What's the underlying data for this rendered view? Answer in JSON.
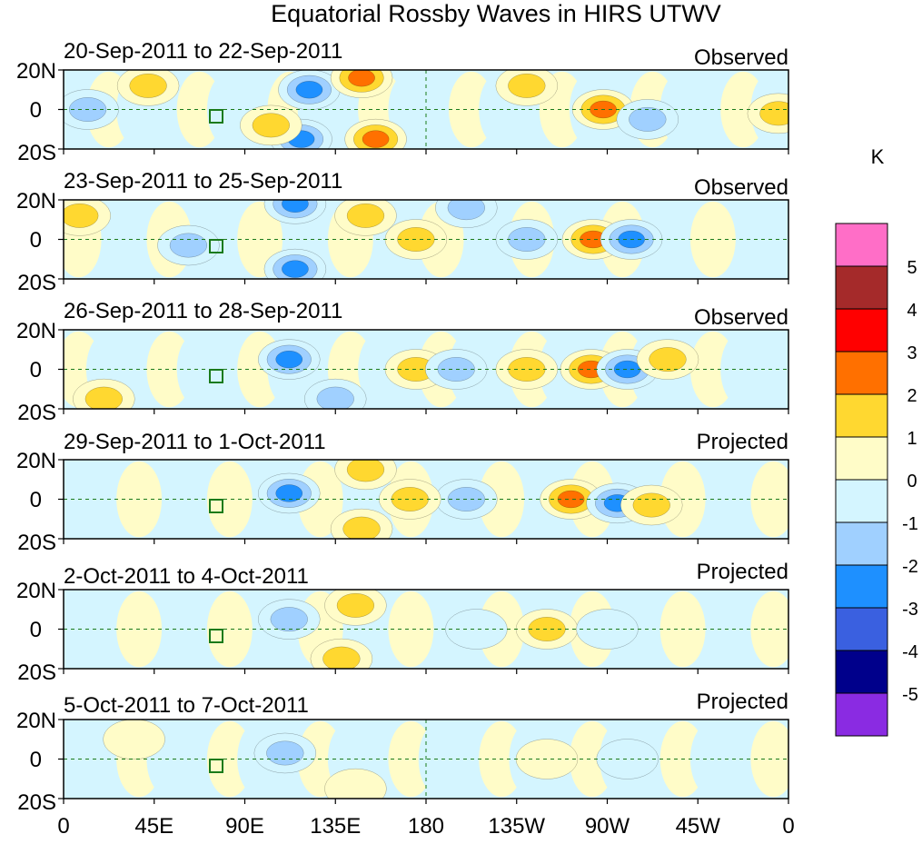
{
  "chart_data": {
    "type": "heatmap",
    "title": "Equatorial Rossby Waves in HIRS UTWV",
    "units": "K",
    "x_ticks": [
      "0",
      "45E",
      "90E",
      "135E",
      "180",
      "135W",
      "90W",
      "45W",
      "0"
    ],
    "x_range_deg": [
      0,
      360
    ],
    "y_ticks": [
      "20N",
      "0",
      "20S"
    ],
    "y_range_deg": [
      -20,
      20
    ],
    "panels": [
      {
        "date_range": "20-Sep-2011 to 22-Sep-2011",
        "kind": "Observed"
      },
      {
        "date_range": "23-Sep-2011 to 25-Sep-2011",
        "kind": "Observed"
      },
      {
        "date_range": "26-Sep-2011 to 28-Sep-2011",
        "kind": "Observed"
      },
      {
        "date_range": "29-Sep-2011 to 1-Oct-2011",
        "kind": "Projected"
      },
      {
        "date_range": "2-Oct-2011 to 4-Oct-2011",
        "kind": "Projected"
      },
      {
        "date_range": "5-Oct-2011 to 7-Oct-2011",
        "kind": "Projected"
      }
    ],
    "colorbar": {
      "label": "K",
      "levels": [
        "5",
        "4",
        "3",
        "2",
        "1",
        "0",
        "-1",
        "-2",
        "-3",
        "-4",
        "-5"
      ],
      "colors": [
        "#ff6ec7",
        "#a52a2a",
        "#ff0000",
        "#ff7000",
        "#ffd830",
        "#fffcc8",
        "#d4f5ff",
        "#a0d0ff",
        "#1e90ff",
        "#3a60e0",
        "#00008b",
        "#8a2be2"
      ]
    },
    "anomaly_features": [
      [
        {
          "lon": 122,
          "lat": 10,
          "v": -2.4
        },
        {
          "lon": 118,
          "lat": -15,
          "v": -2.6
        },
        {
          "lon": 148,
          "lat": 16,
          "v": 2.3
        },
        {
          "lon": 155,
          "lat": -15,
          "v": 2.2
        },
        {
          "lon": 268,
          "lat": 0,
          "v": 2.6
        },
        {
          "lon": 290,
          "lat": -5,
          "v": -1.6
        },
        {
          "lon": 355,
          "lat": -2,
          "v": 1.3
        },
        {
          "lon": 103,
          "lat": -8,
          "v": 1.2
        },
        {
          "lon": 230,
          "lat": 12,
          "v": 1.1
        },
        {
          "lon": 42,
          "lat": 12,
          "v": 1.1
        },
        {
          "lon": 12,
          "lat": 0,
          "v": -1.0
        }
      ],
      [
        {
          "lon": 115,
          "lat": 18,
          "v": -2.7
        },
        {
          "lon": 115,
          "lat": -15,
          "v": -2.8
        },
        {
          "lon": 263,
          "lat": 0,
          "v": 2.8
        },
        {
          "lon": 282,
          "lat": 0,
          "v": -2.6
        },
        {
          "lon": 200,
          "lat": 16,
          "v": -1.3
        },
        {
          "lon": 230,
          "lat": 0,
          "v": -1.4
        },
        {
          "lon": 175,
          "lat": 0,
          "v": 1.3
        },
        {
          "lon": 8,
          "lat": 12,
          "v": 1.2
        },
        {
          "lon": 62,
          "lat": -3,
          "v": -1.2
        },
        {
          "lon": 150,
          "lat": 12,
          "v": 1.1
        }
      ],
      [
        {
          "lon": 112,
          "lat": 5,
          "v": -2.3
        },
        {
          "lon": 262,
          "lat": 0,
          "v": 2.6
        },
        {
          "lon": 280,
          "lat": 0,
          "v": -2.8
        },
        {
          "lon": 175,
          "lat": 0,
          "v": 1.4
        },
        {
          "lon": 195,
          "lat": 0,
          "v": -1.3
        },
        {
          "lon": 230,
          "lat": 0,
          "v": 1.3
        },
        {
          "lon": 135,
          "lat": -15,
          "v": -1.4
        },
        {
          "lon": 300,
          "lat": 5,
          "v": 1.1
        },
        {
          "lon": 20,
          "lat": -15,
          "v": 1.2
        }
      ],
      [
        {
          "lon": 252,
          "lat": 0,
          "v": 2.2
        },
        {
          "lon": 275,
          "lat": -2,
          "v": -2.0
        },
        {
          "lon": 292,
          "lat": -3,
          "v": 1.5
        },
        {
          "lon": 112,
          "lat": 3,
          "v": -2.0
        },
        {
          "lon": 148,
          "lat": -15,
          "v": 1.6
        },
        {
          "lon": 200,
          "lat": 0,
          "v": -1.6
        },
        {
          "lon": 172,
          "lat": 0,
          "v": 1.1
        },
        {
          "lon": 150,
          "lat": 15,
          "v": 1.2
        }
      ],
      [
        {
          "lon": 112,
          "lat": 5,
          "v": -1.6
        },
        {
          "lon": 145,
          "lat": 12,
          "v": 1.3
        },
        {
          "lon": 138,
          "lat": -15,
          "v": 1.3
        },
        {
          "lon": 240,
          "lat": 0,
          "v": 1.2
        },
        {
          "lon": 205,
          "lat": 0,
          "v": -0.9
        },
        {
          "lon": 270,
          "lat": 0,
          "v": -0.9
        }
      ],
      [
        {
          "lon": 110,
          "lat": 3,
          "v": -1.3
        },
        {
          "lon": 145,
          "lat": -15,
          "v": 0.9
        },
        {
          "lon": 240,
          "lat": 0,
          "v": 0.8
        },
        {
          "lon": 280,
          "lat": 0,
          "v": -0.9
        },
        {
          "lon": 35,
          "lat": 10,
          "v": 0.8
        }
      ]
    ]
  }
}
